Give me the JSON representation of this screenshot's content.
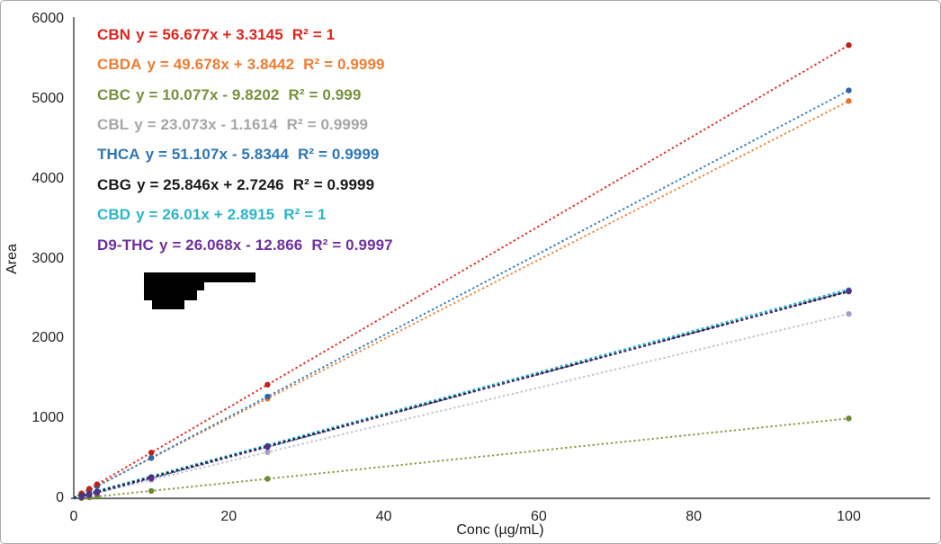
{
  "chart_data": {
    "type": "scatter",
    "title": "",
    "xlabel": "Conc (µg/mL)",
    "ylabel": "Area",
    "xlim": [
      0,
      110.5
    ],
    "ylim": [
      0,
      6000
    ],
    "xticks": [
      0,
      20,
      40,
      60,
      80,
      100
    ],
    "yticks": [
      0,
      1000,
      2000,
      3000,
      4000,
      5000,
      6000
    ],
    "grid": false,
    "legend_position": "inside-top-left",
    "x": [
      1,
      2,
      3,
      10,
      25,
      100
    ],
    "series": [
      {
        "name": "CBN",
        "equation": "y = 56.677x + 3.3145",
        "r2": "R² = 1",
        "slope": 56.677,
        "intercept": 3.3145,
        "color": "#df241c",
        "line_color": "#e0362c",
        "marker_color": "#c3201a",
        "values": [
          60.0,
          116.7,
          173.3,
          570.1,
          1420.2,
          5671.0
        ]
      },
      {
        "name": "CBDA",
        "equation": "y = 49.678x + 3.8442",
        "r2": "R² = 0.9999",
        "slope": 49.678,
        "intercept": 3.8442,
        "color": "#ed7d31",
        "line_color": "#ef8a43",
        "marker_color": "#e2762d",
        "values": [
          53.5,
          103.2,
          152.9,
          500.6,
          1245.8,
          4971.6
        ]
      },
      {
        "name": "CBC",
        "equation": "y = 10.077x - 9.8202",
        "r2": "R² = 0.999",
        "slope": 10.077,
        "intercept": -9.8202,
        "color": "#76923c",
        "line_color": "#8ca050",
        "marker_color": "#6c8a34",
        "values": [
          0.3,
          10.3,
          20.4,
          90.9,
          242.1,
          997.9
        ]
      },
      {
        "name": "CBL",
        "equation": "y = 23.073x - 1.1614",
        "r2": "R² = 0.9999",
        "slope": 23.073,
        "intercept": -1.1614,
        "color": "#a6a6a6",
        "line_color": "#c4c3ce",
        "marker_color": "#a89fc8",
        "values": [
          21.9,
          45.0,
          68.1,
          229.6,
          575.7,
          2306.1
        ]
      },
      {
        "name": "THCA",
        "equation": "y = 51.107x - 5.8344",
        "r2": "R² = 0.9999",
        "slope": 51.107,
        "intercept": -5.8344,
        "color": "#2e75b6",
        "line_color": "#3b82c2",
        "marker_color": "#2a6aa8",
        "values": [
          45.3,
          96.4,
          147.5,
          505.2,
          1271.8,
          5104.9
        ]
      },
      {
        "name": "CBG",
        "equation": "y = 25.846x + 2.7246",
        "r2": "R² = 0.9999",
        "slope": 25.846,
        "intercept": 2.7246,
        "color": "#1a1a1a",
        "line_color": "#1b2235",
        "marker_color": "#1f3a63",
        "values": [
          28.6,
          54.4,
          80.3,
          261.2,
          648.9,
          2587.3
        ]
      },
      {
        "name": "CBD",
        "equation": "y = 26.01x + 2.8915",
        "r2": "R² = 1",
        "slope": 26.01,
        "intercept": 2.8915,
        "color": "#2ab5c9",
        "line_color": "#2ab5c9",
        "marker_color": "#25a8bf",
        "values": [
          28.9,
          54.9,
          80.9,
          263.0,
          653.1,
          2603.9
        ]
      },
      {
        "name": "D9-THC",
        "equation": "y = 26.068x - 12.866",
        "r2": "R² = 0.9997",
        "slope": 26.068,
        "intercept": -12.866,
        "color": "#7030a0",
        "line_color": "#7030a0",
        "marker_color": "#5b2d8e",
        "values": [
          13.2,
          39.3,
          65.3,
          247.8,
          638.8,
          2593.9
        ]
      }
    ]
  },
  "redaction": {
    "color": "#000000",
    "rects": [
      [
        159,
        302,
        124,
        11
      ],
      [
        159,
        302,
        59,
        31
      ],
      [
        218,
        312,
        8,
        10
      ],
      [
        168,
        332,
        36,
        11
      ]
    ]
  }
}
